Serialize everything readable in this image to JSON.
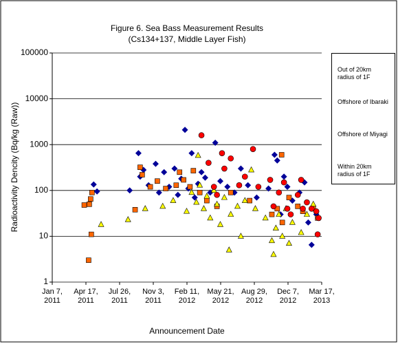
{
  "chart_data": {
    "type": "scatter",
    "title": "Figure 6. Sea Bass Measurement Results",
    "subtitle": "(Cs134+137, Middle Layer Fish)",
    "y_label": "Radioactivity Dencity (Bq/kg (Raw))",
    "x_label": "Announcement Date",
    "log_y": true,
    "grid": true,
    "legend": "right",
    "ylim": [
      1,
      100000
    ],
    "yticks": [
      1,
      10,
      100,
      1000,
      10000,
      100000
    ],
    "xlim": [
      "2011-01-07",
      "2013-03-17"
    ],
    "xticks": [
      {
        "value": "2011-01-07",
        "label": "Jan 7, 2011"
      },
      {
        "value": "2011-04-17",
        "label": "Apr 17, 2011"
      },
      {
        "value": "2011-07-26",
        "label": "Jul 26, 2011"
      },
      {
        "value": "2011-11-03",
        "label": "Nov 3, 2011"
      },
      {
        "value": "2012-02-11",
        "label": "Feb 11, 2012"
      },
      {
        "value": "2012-05-21",
        "label": "May 21, 2012"
      },
      {
        "value": "2012-08-29",
        "label": "Aug 29, 2012"
      },
      {
        "value": "2012-12-07",
        "label": "Dec 7, 2012"
      },
      {
        "value": "2013-03-17",
        "label": "Mar 17, 2013"
      }
    ],
    "series": [
      {
        "name": "Out of 20km radius of 1F",
        "color": "#000099",
        "marker": "diamond",
        "x": [
          "2011-05-10",
          "2011-05-20",
          "2011-08-25",
          "2011-09-20",
          "2011-09-25",
          "2011-10-05",
          "2011-10-20",
          "2011-11-10",
          "2011-11-20",
          "2011-12-05",
          "2011-12-20",
          "2012-01-05",
          "2012-01-15",
          "2012-01-25",
          "2012-02-05",
          "2012-02-15",
          "2012-02-25",
          "2012-03-05",
          "2012-03-15",
          "2012-03-25",
          "2012-04-05",
          "2012-04-20",
          "2012-05-05",
          "2012-05-20",
          "2012-06-10",
          "2012-07-01",
          "2012-07-20",
          "2012-08-10",
          "2012-09-05",
          "2012-10-10",
          "2012-10-28",
          "2012-11-05",
          "2012-11-15",
          "2012-11-25",
          "2012-12-05",
          "2012-12-20",
          "2013-01-10",
          "2013-01-25",
          "2013-02-05",
          "2013-02-15",
          "2013-03-01"
        ],
        "values": [
          135,
          95,
          100,
          650,
          200,
          280,
          130,
          380,
          90,
          250,
          120,
          300,
          80,
          180,
          2100,
          110,
          650,
          70,
          140,
          250,
          190,
          90,
          1100,
          160,
          120,
          90,
          300,
          130,
          70,
          110,
          600,
          450,
          30,
          200,
          120,
          60,
          90,
          150,
          20,
          6.5,
          30
        ]
      },
      {
        "name": "Offshore of Ibaraki",
        "color": "#ff6600",
        "marker": "square",
        "x": [
          "2011-04-12",
          "2011-04-25",
          "2011-04-27",
          "2011-05-01",
          "2011-05-03",
          "2011-05-05",
          "2011-09-10",
          "2011-09-25",
          "2011-10-01",
          "2011-10-25",
          "2011-11-15",
          "2011-12-10",
          "2012-01-10",
          "2012-01-20",
          "2012-02-01",
          "2012-02-20",
          "2012-03-01",
          "2012-03-20",
          "2012-04-10",
          "2012-05-10",
          "2012-06-20",
          "2012-08-15",
          "2012-10-20",
          "2012-11-05",
          "2012-11-18",
          "2012-11-20",
          "2012-12-10",
          "2013-01-05",
          "2013-01-20",
          "2013-02-20",
          "2013-03-05"
        ],
        "values": [
          48,
          3,
          50,
          65,
          11,
          90,
          38,
          320,
          220,
          120,
          160,
          110,
          130,
          250,
          170,
          120,
          270,
          90,
          60,
          45,
          90,
          60,
          30,
          40,
          600,
          20,
          70,
          45,
          35,
          40,
          25
        ]
      },
      {
        "name": "Offshore of Miyagi",
        "color": "#ffff00",
        "marker": "triangle",
        "x": [
          "2011-06-01",
          "2011-08-20",
          "2011-10-10",
          "2011-12-01",
          "2012-01-01",
          "2012-02-10",
          "2012-02-25",
          "2012-03-10",
          "2012-03-15",
          "2012-03-20",
          "2012-04-01",
          "2012-04-10",
          "2012-04-20",
          "2012-05-01",
          "2012-05-10",
          "2012-05-20",
          "2012-06-01",
          "2012-06-15",
          "2012-06-20",
          "2012-07-10",
          "2012-07-20",
          "2012-08-01",
          "2012-08-20",
          "2012-09-01",
          "2012-10-01",
          "2012-10-20",
          "2012-10-25",
          "2012-11-01",
          "2012-11-10",
          "2012-11-20",
          "2012-12-01",
          "2012-12-10",
          "2012-12-20",
          "2013-01-15",
          "2013-02-01",
          "2013-02-20"
        ],
        "values": [
          18,
          23,
          40,
          45,
          60,
          35,
          90,
          55,
          580,
          130,
          40,
          75,
          25,
          100,
          50,
          18,
          70,
          5,
          30,
          45,
          10,
          60,
          280,
          40,
          25,
          8,
          4,
          15,
          30,
          10,
          40,
          7,
          20,
          12,
          30,
          50
        ]
      },
      {
        "name": "Within 20km radius of 1F",
        "color": "#ff0000",
        "marker": "circle",
        "x": [
          "2012-03-25",
          "2012-04-15",
          "2012-05-01",
          "2012-05-10",
          "2012-05-25",
          "2012-06-01",
          "2012-06-20",
          "2012-07-15",
          "2012-08-01",
          "2012-08-25",
          "2012-09-10",
          "2012-10-15",
          "2012-10-25",
          "2012-11-10",
          "2012-11-25",
          "2012-12-05",
          "2012-12-15",
          "2013-01-05",
          "2013-01-15",
          "2013-01-20",
          "2013-02-01",
          "2013-02-15",
          "2013-03-01",
          "2013-03-05",
          "2013-03-08"
        ],
        "values": [
          1600,
          400,
          120,
          80,
          650,
          300,
          500,
          130,
          200,
          800,
          120,
          170,
          45,
          90,
          150,
          40,
          30,
          80,
          170,
          40,
          55,
          40,
          35,
          11,
          25
        ]
      }
    ]
  }
}
